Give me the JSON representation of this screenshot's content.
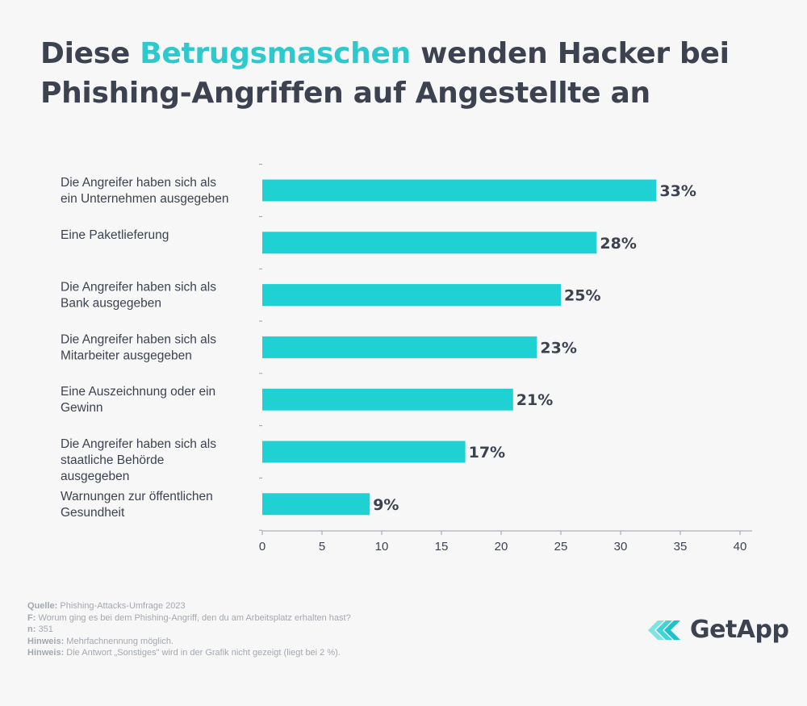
{
  "title": {
    "part1": "Diese ",
    "highlight": "Betrugsmaschen",
    "part2": " wenden Hacker bei Phishing-Angriffen auf Angestellte an"
  },
  "colors": {
    "bar": "#1fd1d3",
    "accent": "#2ec9cc",
    "text": "#3c4250",
    "axis": "#9aa0a8"
  },
  "chart_data": {
    "type": "bar",
    "orientation": "horizontal",
    "categories": [
      [
        "Die Angreifer haben sich als",
        "ein Unternehmen ausgegeben"
      ],
      [
        "Eine Paketlieferung"
      ],
      [
        "Die Angreifer haben sich als",
        "Bank ausgegeben"
      ],
      [
        "Die Angreifer haben sich als",
        "Mitarbeiter ausgegeben"
      ],
      [
        "Eine Auszeichnung oder ein",
        "Gewinn"
      ],
      [
        "Die Angreifer haben sich als",
        "staatliche Behörde",
        "ausgegeben"
      ],
      [
        "Warnungen zur öffentlichen",
        "Gesundheit"
      ]
    ],
    "values": [
      33,
      28,
      25,
      23,
      21,
      17,
      9
    ],
    "value_labels": [
      "33%",
      "28%",
      "25%",
      "23%",
      "21%",
      "17%",
      "9%"
    ],
    "xlim": [
      0,
      40
    ],
    "xticks": [
      0,
      5,
      10,
      15,
      20,
      25,
      30,
      35,
      40
    ],
    "grid": false
  },
  "footer": {
    "source_label": "Quelle:",
    "source": "Phishing-Attacks-Umfrage 2023",
    "question_label": "F:",
    "question": "Worum ging es bei dem Phishing-Angriff, den du am Arbeitsplatz erhalten hast?",
    "n_label": "n:",
    "n": "351",
    "note1_label": "Hinweis:",
    "note1": "Mehrfachnennung möglich.",
    "note2_label": "Hinweis:",
    "note2": "Die Antwort „Sonstiges\" wird in der Grafik nicht gezeigt (liegt bei 2 %)."
  },
  "logo": {
    "text": "GetApp",
    "icon": "getapp-chevron-logo-icon"
  }
}
